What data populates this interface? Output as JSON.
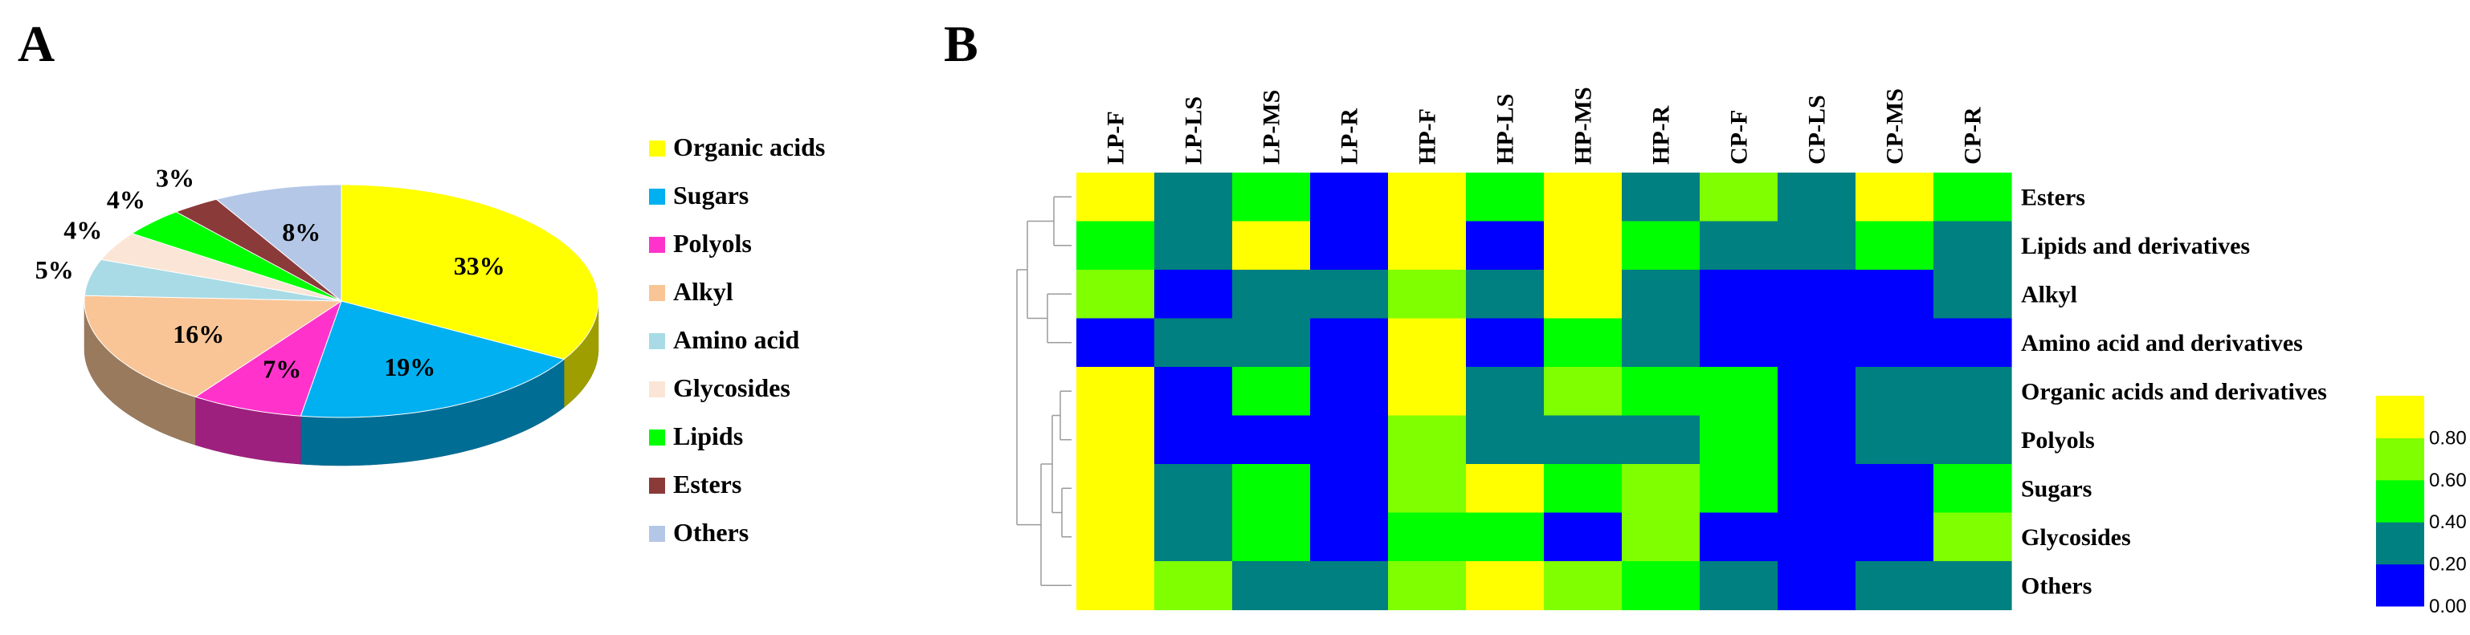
{
  "panels": {
    "a_label": "A",
    "b_label": "B"
  },
  "chart_data": [
    {
      "type": "pie",
      "categories": [
        "Organic acids",
        "Sugars",
        "Polyols",
        "Alkyl",
        "Amino acid",
        "Glycosides",
        "Lipids",
        "Esters",
        "Others"
      ],
      "values": [
        33,
        19,
        7,
        16,
        5,
        4,
        4,
        3,
        8
      ],
      "value_labels": [
        "33%",
        "19%",
        "7%",
        "16%",
        "5%",
        "4%",
        "4%",
        "3%",
        "8%"
      ],
      "colors": [
        "#ffff00",
        "#00b0f0",
        "#ff33cc",
        "#f9c596",
        "#a8dbe5",
        "#fbe5d6",
        "#00ff00",
        "#8b3a3a",
        "#b4c7e7"
      ],
      "style": "3d",
      "legend_position": "right"
    },
    {
      "type": "heatmap",
      "columns": [
        "LP-F",
        "LP-LS",
        "LP-MS",
        "LP-R",
        "HP-F",
        "HP-LS",
        "HP-MS",
        "HP-R",
        "CP-F",
        "CP-LS",
        "CP-MS",
        "CP-R"
      ],
      "rows": [
        "Esters",
        "Lipids and derivatives",
        "Alkyl",
        "Amino acid and derivatives",
        "Organic acids and derivatives",
        "Polyols",
        "Sugars",
        "Glycosides",
        "Others"
      ],
      "values": [
        [
          1.0,
          0.2,
          0.5,
          0.0,
          1.0,
          0.5,
          1.0,
          0.2,
          0.7,
          0.2,
          1.0,
          0.5
        ],
        [
          0.5,
          0.2,
          1.0,
          0.0,
          1.0,
          0.0,
          1.0,
          0.5,
          0.2,
          0.2,
          0.5,
          0.2
        ],
        [
          0.7,
          0.0,
          0.2,
          0.2,
          0.7,
          0.2,
          1.0,
          0.2,
          0.0,
          0.0,
          0.0,
          0.2
        ],
        [
          0.0,
          0.2,
          0.2,
          0.0,
          1.0,
          0.0,
          0.5,
          0.2,
          0.0,
          0.0,
          0.0,
          0.0
        ],
        [
          1.0,
          0.0,
          0.5,
          0.0,
          1.0,
          0.2,
          0.7,
          0.5,
          0.5,
          0.0,
          0.2,
          0.2
        ],
        [
          1.0,
          0.0,
          0.0,
          0.0,
          0.7,
          0.2,
          0.2,
          0.2,
          0.5,
          0.0,
          0.2,
          0.2
        ],
        [
          1.0,
          0.2,
          0.5,
          0.0,
          0.7,
          1.0,
          0.5,
          0.7,
          0.5,
          0.0,
          0.0,
          0.5
        ],
        [
          1.0,
          0.2,
          0.5,
          0.0,
          0.5,
          0.5,
          0.0,
          0.7,
          0.0,
          0.0,
          0.0,
          0.7
        ],
        [
          1.0,
          0.7,
          0.2,
          0.2,
          0.7,
          1.0,
          0.7,
          0.5,
          0.2,
          0.0,
          0.2,
          0.2
        ]
      ],
      "colorbar": {
        "ticks": [
          "0.00",
          "0.20",
          "0.40",
          "0.60",
          "0.80"
        ],
        "tick_values": [
          0.0,
          0.2,
          0.4,
          0.6,
          0.8
        ],
        "range": [
          0.0,
          1.0
        ],
        "colors": [
          "#0000ff",
          "#008080",
          "#00ff00",
          "#7fff00",
          "#ffff00"
        ]
      },
      "dendrogram": "rows",
      "grid": false
    }
  ]
}
